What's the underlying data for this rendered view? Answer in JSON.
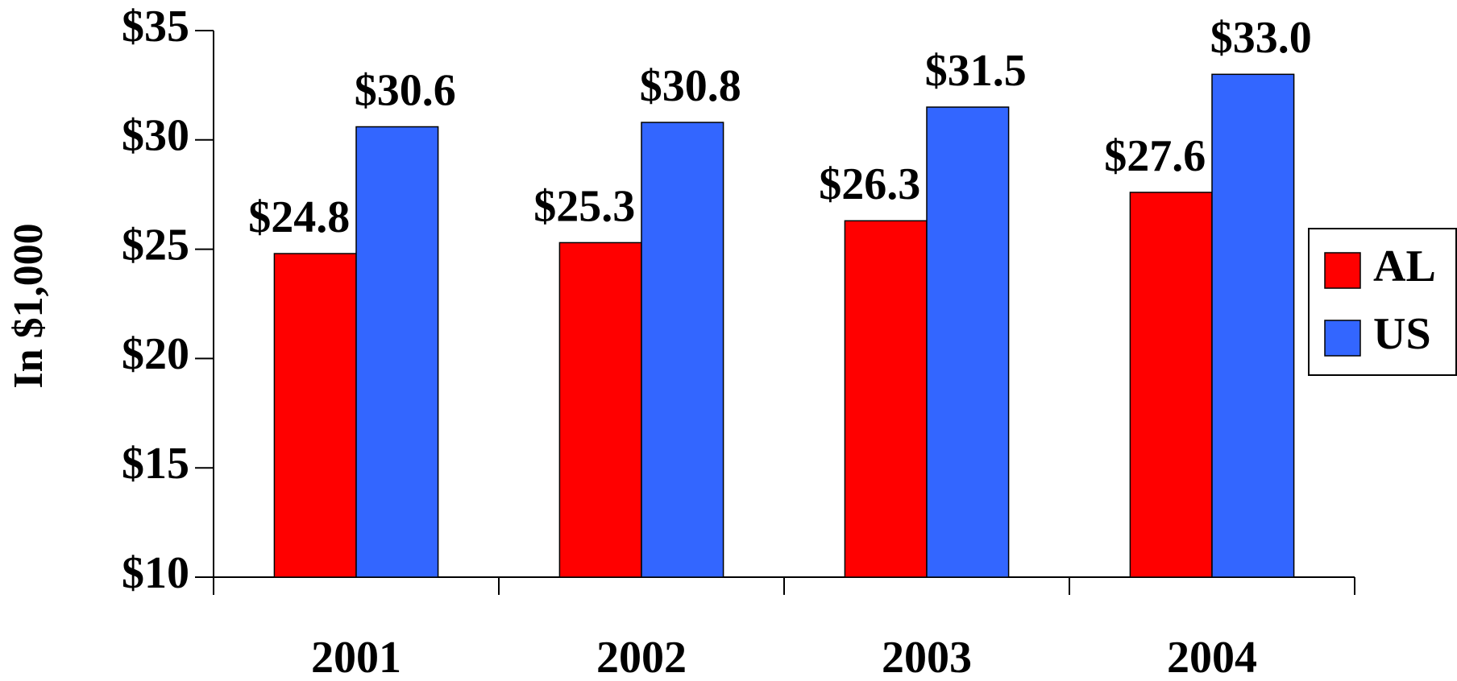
{
  "chart_data": {
    "type": "bar",
    "y_label": "In $1,000",
    "categories": [
      "2001",
      "2002",
      "2003",
      "2004"
    ],
    "series": [
      {
        "name": "AL",
        "color": "#ff0000",
        "values": [
          24.8,
          25.3,
          26.3,
          27.6
        ],
        "value_labels": [
          "$24.8",
          "$25.3",
          "$26.3",
          "$27.6"
        ]
      },
      {
        "name": "US",
        "color": "#3366ff",
        "values": [
          30.6,
          30.8,
          31.5,
          33.0
        ],
        "value_labels": [
          "$30.6",
          "$30.8",
          "$31.5",
          "$33.0"
        ]
      }
    ],
    "ylim": [
      10,
      35
    ],
    "yticks": [
      {
        "value": 10,
        "label": "$10"
      },
      {
        "value": 15,
        "label": "$15"
      },
      {
        "value": 20,
        "label": "$20"
      },
      {
        "value": 25,
        "label": "$25"
      },
      {
        "value": 30,
        "label": "$30"
      },
      {
        "value": 35,
        "label": "$35"
      }
    ],
    "legend": "right"
  }
}
